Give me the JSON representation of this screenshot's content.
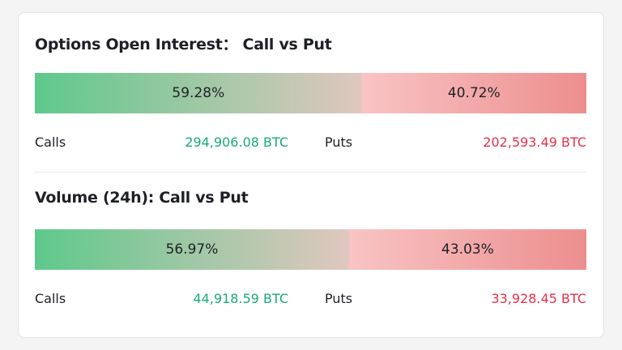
{
  "chart_data": [
    {
      "type": "split-bar",
      "title": "Options Open Interest： Call vs Put",
      "series": [
        {
          "name": "Calls",
          "color": "#1aa97b",
          "values": [
            59.28
          ],
          "value_labels": [
            "59.28%"
          ],
          "amount_label": "294,906.08 BTC"
        },
        {
          "name": "Puts",
          "color": "#e5304a",
          "values": [
            40.72
          ],
          "value_labels": [
            "40.72%"
          ],
          "amount_label": "202,593.49 BTC"
        }
      ]
    },
    {
      "type": "split-bar",
      "title": "Volume (24h): Call vs Put",
      "series": [
        {
          "name": "Calls",
          "color": "#1aa97b",
          "values": [
            56.97
          ],
          "value_labels": [
            "56.97%"
          ],
          "amount_label": "44,918.59 BTC"
        },
        {
          "name": "Puts",
          "color": "#e5304a",
          "values": [
            43.03
          ],
          "value_labels": [
            "43.03%"
          ],
          "amount_label": "33,928.45 BTC"
        }
      ]
    }
  ]
}
